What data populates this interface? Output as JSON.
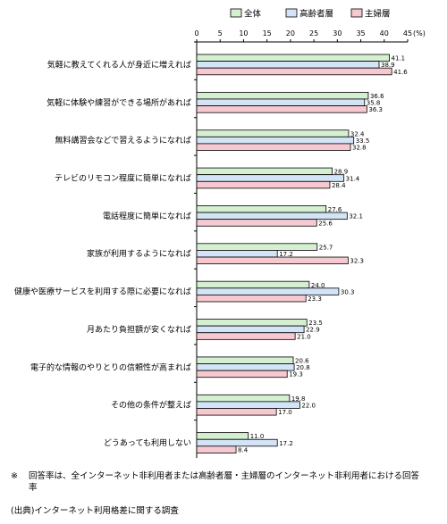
{
  "chart_data": {
    "type": "bar",
    "orientation": "horizontal",
    "title": "",
    "xlabel": "",
    "ylabel": "",
    "unit": "(%)",
    "xlim": [
      0,
      45
    ],
    "ticks": [
      0,
      5,
      10,
      15,
      20,
      25,
      30,
      35,
      40,
      45
    ],
    "grid": false,
    "legend_position": "top-right",
    "categories": [
      "気軽に教えてくれる人が身近に増えれば",
      "気軽に体験や練習ができる場所があれば",
      "無料講習会などで習えるようになれば",
      "テレビのリモコン程度に簡単になれば",
      "電話程度に簡単になれば",
      "家族が利用するようになれば",
      "健康や医療サービスを利用する際に必要になれば",
      "月あたり負担額が安くなれば",
      "電子的な情報のやりとりの信頼性が高まれば",
      "その他の条件が整えば",
      "どうあっても利用しない"
    ],
    "series": [
      {
        "name": "全体",
        "color": "#d4f0d0",
        "values": [
          41.1,
          36.6,
          32.4,
          28.9,
          27.6,
          25.7,
          24.0,
          23.5,
          20.6,
          19.8,
          11.0
        ]
      },
      {
        "name": "高齢者層",
        "color": "#d2e4f6",
        "values": [
          38.9,
          35.8,
          33.5,
          31.4,
          32.1,
          17.2,
          30.3,
          22.9,
          20.8,
          22.0,
          17.2
        ]
      },
      {
        "name": "主婦層",
        "color": "#f6c8d0",
        "values": [
          41.6,
          36.3,
          32.8,
          28.4,
          25.6,
          32.3,
          23.3,
          21.0,
          19.3,
          17.0,
          8.4
        ]
      }
    ]
  },
  "notes": {
    "mark": "※",
    "text": "回答率は、全インターネット非利用者または高齢者層・主婦層のインターネット非利用者における回答率"
  },
  "source": "(出典)インターネット利用格差に関する調査"
}
